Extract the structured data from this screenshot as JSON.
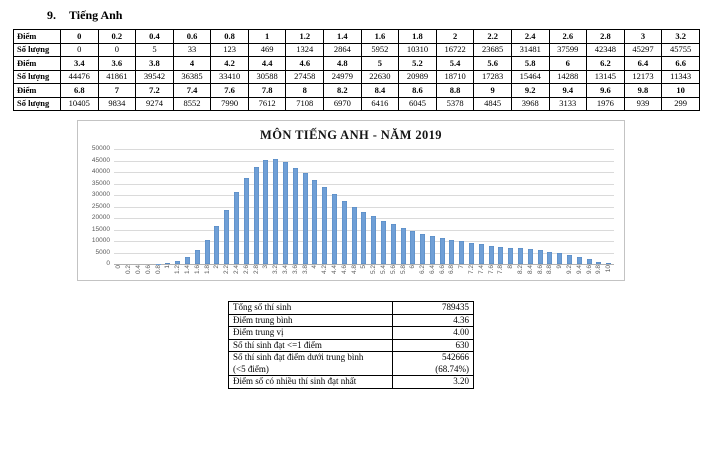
{
  "heading": {
    "number": "9.",
    "title": "Tiếng Anh"
  },
  "score_table": {
    "row_labels": {
      "score": "Điểm",
      "count": "Số lượng"
    },
    "rows": [
      {
        "label": "Điểm",
        "bold": true,
        "values": [
          "0",
          "0.2",
          "0.4",
          "0.6",
          "0.8",
          "1",
          "1.2",
          "1.4",
          "1.6",
          "1.8",
          "2",
          "2.2",
          "2.4",
          "2.6",
          "2.8",
          "3",
          "3.2"
        ]
      },
      {
        "label": "Số lượng",
        "bold": false,
        "values": [
          "0",
          "0",
          "5",
          "33",
          "123",
          "469",
          "1324",
          "2864",
          "5952",
          "10310",
          "16722",
          "23685",
          "31481",
          "37599",
          "42348",
          "45297",
          "45755"
        ]
      },
      {
        "label": "Điểm",
        "bold": true,
        "values": [
          "3.4",
          "3.6",
          "3.8",
          "4",
          "4.2",
          "4.4",
          "4.6",
          "4.8",
          "5",
          "5.2",
          "5.4",
          "5.6",
          "5.8",
          "6",
          "6.2",
          "6.4",
          "6.6"
        ]
      },
      {
        "label": "Số lượng",
        "bold": false,
        "values": [
          "44476",
          "41861",
          "39542",
          "36385",
          "33410",
          "30588",
          "27458",
          "24979",
          "22630",
          "20989",
          "18710",
          "17283",
          "15464",
          "14288",
          "13145",
          "12173",
          "11343"
        ]
      },
      {
        "label": "Điểm",
        "bold": true,
        "values": [
          "6.8",
          "7",
          "7.2",
          "7.4",
          "7.6",
          "7.8",
          "8",
          "8.2",
          "8.4",
          "8.6",
          "8.8",
          "9",
          "9.2",
          "9.4",
          "9.6",
          "9.8",
          "10"
        ]
      },
      {
        "label": "Số lượng",
        "bold": false,
        "values": [
          "10405",
          "9834",
          "9274",
          "8552",
          "7990",
          "7612",
          "7108",
          "6970",
          "6416",
          "6045",
          "5378",
          "4845",
          "3968",
          "3133",
          "1976",
          "939",
          "299"
        ]
      }
    ]
  },
  "chart_data": {
    "type": "bar",
    "title": "MÔN TIẾNG ANH - NĂM 2019",
    "categories": [
      "0",
      "0.2",
      "0.4",
      "0.6",
      "0.8",
      "1",
      "1.2",
      "1.4",
      "1.6",
      "1.8",
      "2",
      "2.2",
      "2.4",
      "2.6",
      "2.8",
      "3",
      "3.2",
      "3.4",
      "3.6",
      "3.8",
      "4",
      "4.2",
      "4.4",
      "4.6",
      "4.8",
      "5",
      "5.2",
      "5.4",
      "5.6",
      "5.8",
      "6",
      "6.2",
      "6.4",
      "6.6",
      "6.8",
      "7",
      "7.2",
      "7.4",
      "7.6",
      "7.8",
      "8",
      "8.2",
      "8.4",
      "8.6",
      "8.8",
      "9",
      "9.2",
      "9.4",
      "9.6",
      "9.8",
      "10"
    ],
    "values": [
      0,
      0,
      5,
      33,
      123,
      469,
      1324,
      2864,
      5952,
      10310,
      16722,
      23685,
      31481,
      37599,
      42348,
      45297,
      45755,
      44476,
      41861,
      39542,
      36385,
      33410,
      30588,
      27458,
      24979,
      22630,
      20989,
      18710,
      17283,
      15464,
      14288,
      13145,
      12173,
      11343,
      10405,
      9834,
      9274,
      8552,
      7990,
      7612,
      7108,
      6970,
      6416,
      6045,
      5378,
      4845,
      3968,
      3133,
      1976,
      939,
      299
    ],
    "xlabel": "",
    "ylabel": "",
    "ylim": [
      0,
      50000
    ],
    "yticks": [
      0,
      5000,
      10000,
      15000,
      20000,
      25000,
      30000,
      35000,
      40000,
      45000,
      50000
    ],
    "grid": true,
    "legend": "none",
    "bar_color": "#6f9fd6",
    "axis_label_color": "#595959"
  },
  "summary_table": {
    "rows": [
      {
        "label": "Tổng số thí sinh",
        "value": "789435"
      },
      {
        "label": "Điểm trung bình",
        "value": "4.36"
      },
      {
        "label": "Điểm trung vị",
        "value": "4.00"
      },
      {
        "label": "Số thí sinh đạt <=1 điểm",
        "value": "630"
      },
      {
        "label": "Số thí sinh đạt điểm dưới trung bình\n(<5 điểm)",
        "value": "542666\n(68.74%)"
      },
      {
        "label": "Điểm số có nhiều thí sinh đạt nhất",
        "value": "3.20"
      }
    ]
  }
}
